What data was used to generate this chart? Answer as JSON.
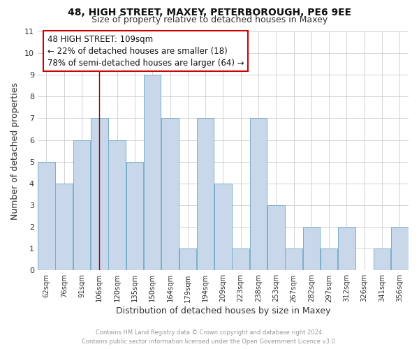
{
  "title": "48, HIGH STREET, MAXEY, PETERBOROUGH, PE6 9EE",
  "subtitle": "Size of property relative to detached houses in Maxey",
  "xlabel": "Distribution of detached houses by size in Maxey",
  "ylabel": "Number of detached properties",
  "footer_line1": "Contains HM Land Registry data © Crown copyright and database right 2024.",
  "footer_line2": "Contains public sector information licensed under the Open Government Licence v3.0.",
  "bar_labels": [
    "62sqm",
    "76sqm",
    "91sqm",
    "106sqm",
    "120sqm",
    "135sqm",
    "150sqm",
    "164sqm",
    "179sqm",
    "194sqm",
    "209sqm",
    "223sqm",
    "238sqm",
    "253sqm",
    "267sqm",
    "282sqm",
    "297sqm",
    "312sqm",
    "326sqm",
    "341sqm",
    "356sqm"
  ],
  "bar_values": [
    5,
    4,
    6,
    7,
    6,
    5,
    9,
    7,
    1,
    7,
    4,
    1,
    7,
    3,
    1,
    2,
    1,
    2,
    0,
    1,
    2
  ],
  "bar_color": "#c8d8ea",
  "bar_edge_color": "#7bafc8",
  "ylim": [
    0,
    11
  ],
  "yticks": [
    0,
    1,
    2,
    3,
    4,
    5,
    6,
    7,
    8,
    9,
    10,
    11
  ],
  "annotation_text": "48 HIGH STREET: 109sqm\n← 22% of detached houses are smaller (18)\n78% of semi-detached houses are larger (64) →",
  "vline_x_index": 3,
  "vline_color": "#aa0000",
  "annotation_box_facecolor": "#ffffff",
  "annotation_box_edgecolor": "#cc0000",
  "grid_color": "#cccccc",
  "background_color": "#ffffff",
  "title_fontsize": 10,
  "subtitle_fontsize": 9
}
